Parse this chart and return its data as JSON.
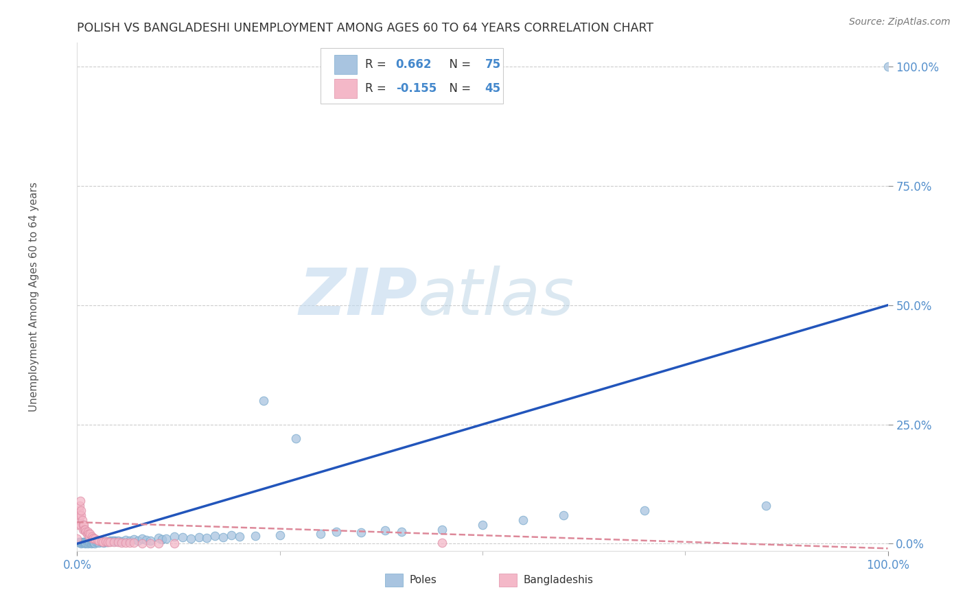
{
  "title": "POLISH VS BANGLADESHI UNEMPLOYMENT AMONG AGES 60 TO 64 YEARS CORRELATION CHART",
  "source": "Source: ZipAtlas.com",
  "ylabel": "Unemployment Among Ages 60 to 64 years",
  "r_poles": 0.662,
  "n_poles": 75,
  "r_bangladeshi": -0.155,
  "n_bangladeshi": 45,
  "poles_color": "#a8c4e0",
  "poles_edge_color": "#7aabcd",
  "bangladeshi_color": "#f4b8c8",
  "bangladeshi_edge_color": "#e090a8",
  "poles_line_color": "#2255bb",
  "bangladeshi_line_color": "#dd8899",
  "legend_label_poles": "Poles",
  "legend_label_bangladeshi": "Bangladeshis",
  "watermark_zip": "ZIP",
  "watermark_atlas": "atlas",
  "xlim": [
    0.0,
    1.0
  ],
  "ylim": [
    -0.015,
    1.05
  ],
  "poles_line_start_y": 0.0,
  "poles_line_end_y": 0.5,
  "bangladeshi_line_start_y": 0.045,
  "bangladeshi_line_end_y": -0.01,
  "ytick_labels": [
    "0.0%",
    "25.0%",
    "50.0%",
    "75.0%",
    "100.0%"
  ],
  "ytick_vals": [
    0.0,
    0.25,
    0.5,
    0.75,
    1.0
  ],
  "xtick_labels": [
    "0.0%",
    "100.0%"
  ],
  "xtick_vals": [
    0.0,
    1.0
  ],
  "poles_x": [
    0.002,
    0.003,
    0.004,
    0.005,
    0.005,
    0.006,
    0.007,
    0.008,
    0.009,
    0.01,
    0.01,
    0.011,
    0.012,
    0.013,
    0.014,
    0.015,
    0.016,
    0.017,
    0.018,
    0.019,
    0.02,
    0.021,
    0.022,
    0.023,
    0.025,
    0.027,
    0.028,
    0.03,
    0.032,
    0.033,
    0.035,
    0.036,
    0.038,
    0.04,
    0.042,
    0.044,
    0.046,
    0.048,
    0.05,
    0.055,
    0.06,
    0.065,
    0.07,
    0.075,
    0.08,
    0.085,
    0.09,
    0.1,
    0.105,
    0.11,
    0.12,
    0.13,
    0.14,
    0.15,
    0.16,
    0.17,
    0.18,
    0.19,
    0.2,
    0.22,
    0.23,
    0.25,
    0.27,
    0.3,
    0.32,
    0.35,
    0.38,
    0.4,
    0.45,
    0.5,
    0.55,
    0.6,
    0.7,
    0.85,
    1.0
  ],
  "poles_y": [
    0.003,
    0.002,
    0.004,
    0.001,
    0.003,
    0.002,
    0.003,
    0.004,
    0.002,
    0.001,
    0.003,
    0.002,
    0.004,
    0.001,
    0.003,
    0.002,
    0.003,
    0.001,
    0.002,
    0.003,
    0.004,
    0.002,
    0.001,
    0.003,
    0.004,
    0.002,
    0.005,
    0.003,
    0.004,
    0.002,
    0.005,
    0.003,
    0.004,
    0.006,
    0.005,
    0.007,
    0.006,
    0.005,
    0.007,
    0.005,
    0.008,
    0.006,
    0.009,
    0.007,
    0.01,
    0.008,
    0.007,
    0.012,
    0.009,
    0.011,
    0.015,
    0.013,
    0.01,
    0.014,
    0.012,
    0.016,
    0.013,
    0.018,
    0.015,
    0.016,
    0.3,
    0.018,
    0.22,
    0.02,
    0.025,
    0.023,
    0.028,
    0.025,
    0.03,
    0.04,
    0.05,
    0.06,
    0.07,
    0.08,
    1.0
  ],
  "bangladeshi_x": [
    0.0,
    0.001,
    0.001,
    0.002,
    0.002,
    0.003,
    0.003,
    0.004,
    0.004,
    0.005,
    0.005,
    0.006,
    0.007,
    0.007,
    0.008,
    0.009,
    0.01,
    0.011,
    0.012,
    0.013,
    0.014,
    0.015,
    0.016,
    0.018,
    0.019,
    0.02,
    0.022,
    0.025,
    0.027,
    0.03,
    0.032,
    0.035,
    0.038,
    0.04,
    0.045,
    0.05,
    0.055,
    0.06,
    0.065,
    0.07,
    0.08,
    0.09,
    0.1,
    0.12,
    0.45
  ],
  "bangladeshi_y": [
    0.01,
    0.06,
    0.04,
    0.07,
    0.05,
    0.08,
    0.06,
    0.09,
    0.04,
    0.06,
    0.07,
    0.05,
    0.04,
    0.03,
    0.04,
    0.03,
    0.03,
    0.025,
    0.02,
    0.025,
    0.02,
    0.015,
    0.02,
    0.015,
    0.01,
    0.012,
    0.01,
    0.008,
    0.006,
    0.005,
    0.004,
    0.005,
    0.004,
    0.003,
    0.003,
    0.003,
    0.002,
    0.002,
    0.002,
    0.002,
    0.001,
    0.001,
    0.001,
    0.001,
    0.002
  ]
}
